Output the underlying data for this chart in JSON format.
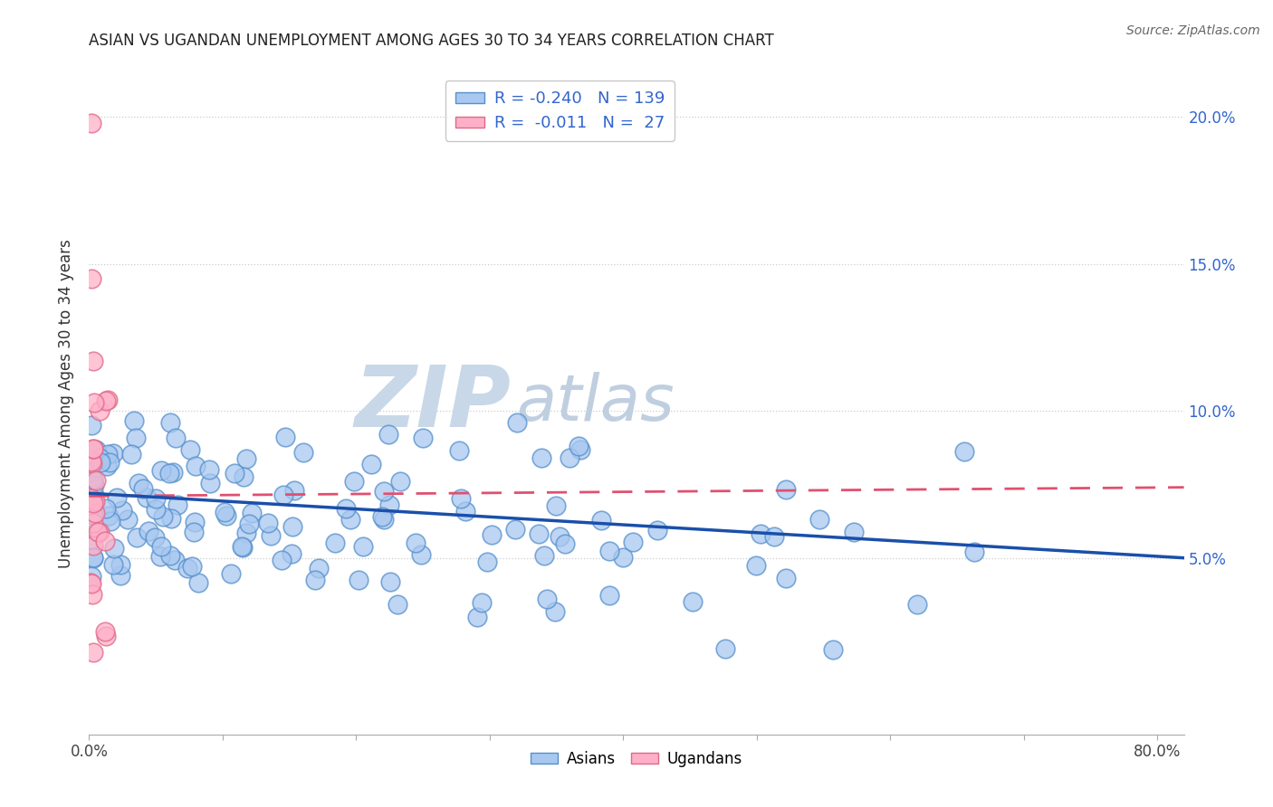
{
  "title": "ASIAN VS UGANDAN UNEMPLOYMENT AMONG AGES 30 TO 34 YEARS CORRELATION CHART",
  "source": "Source: ZipAtlas.com",
  "ylabel": "Unemployment Among Ages 30 to 34 years",
  "xlim": [
    0.0,
    0.82
  ],
  "ylim": [
    -0.01,
    0.215
  ],
  "asian_color": "#a8c8f0",
  "asian_edge_color": "#5590cc",
  "ugandan_color": "#ffb0c8",
  "ugandan_edge_color": "#e06888",
  "asian_line_color": "#1a4faa",
  "ugandan_line_color": "#e05070",
  "R_asian": -0.24,
  "N_asian": 139,
  "R_ugandan": -0.011,
  "N_ugandan": 27,
  "watermark_zip_color": "#c8d8e8",
  "watermark_atlas_color": "#c0cfe0",
  "background_color": "#ffffff",
  "grid_color": "#cccccc",
  "right_tick_color": "#3366cc",
  "title_color": "#222222",
  "source_color": "#666666",
  "ylabel_color": "#333333"
}
